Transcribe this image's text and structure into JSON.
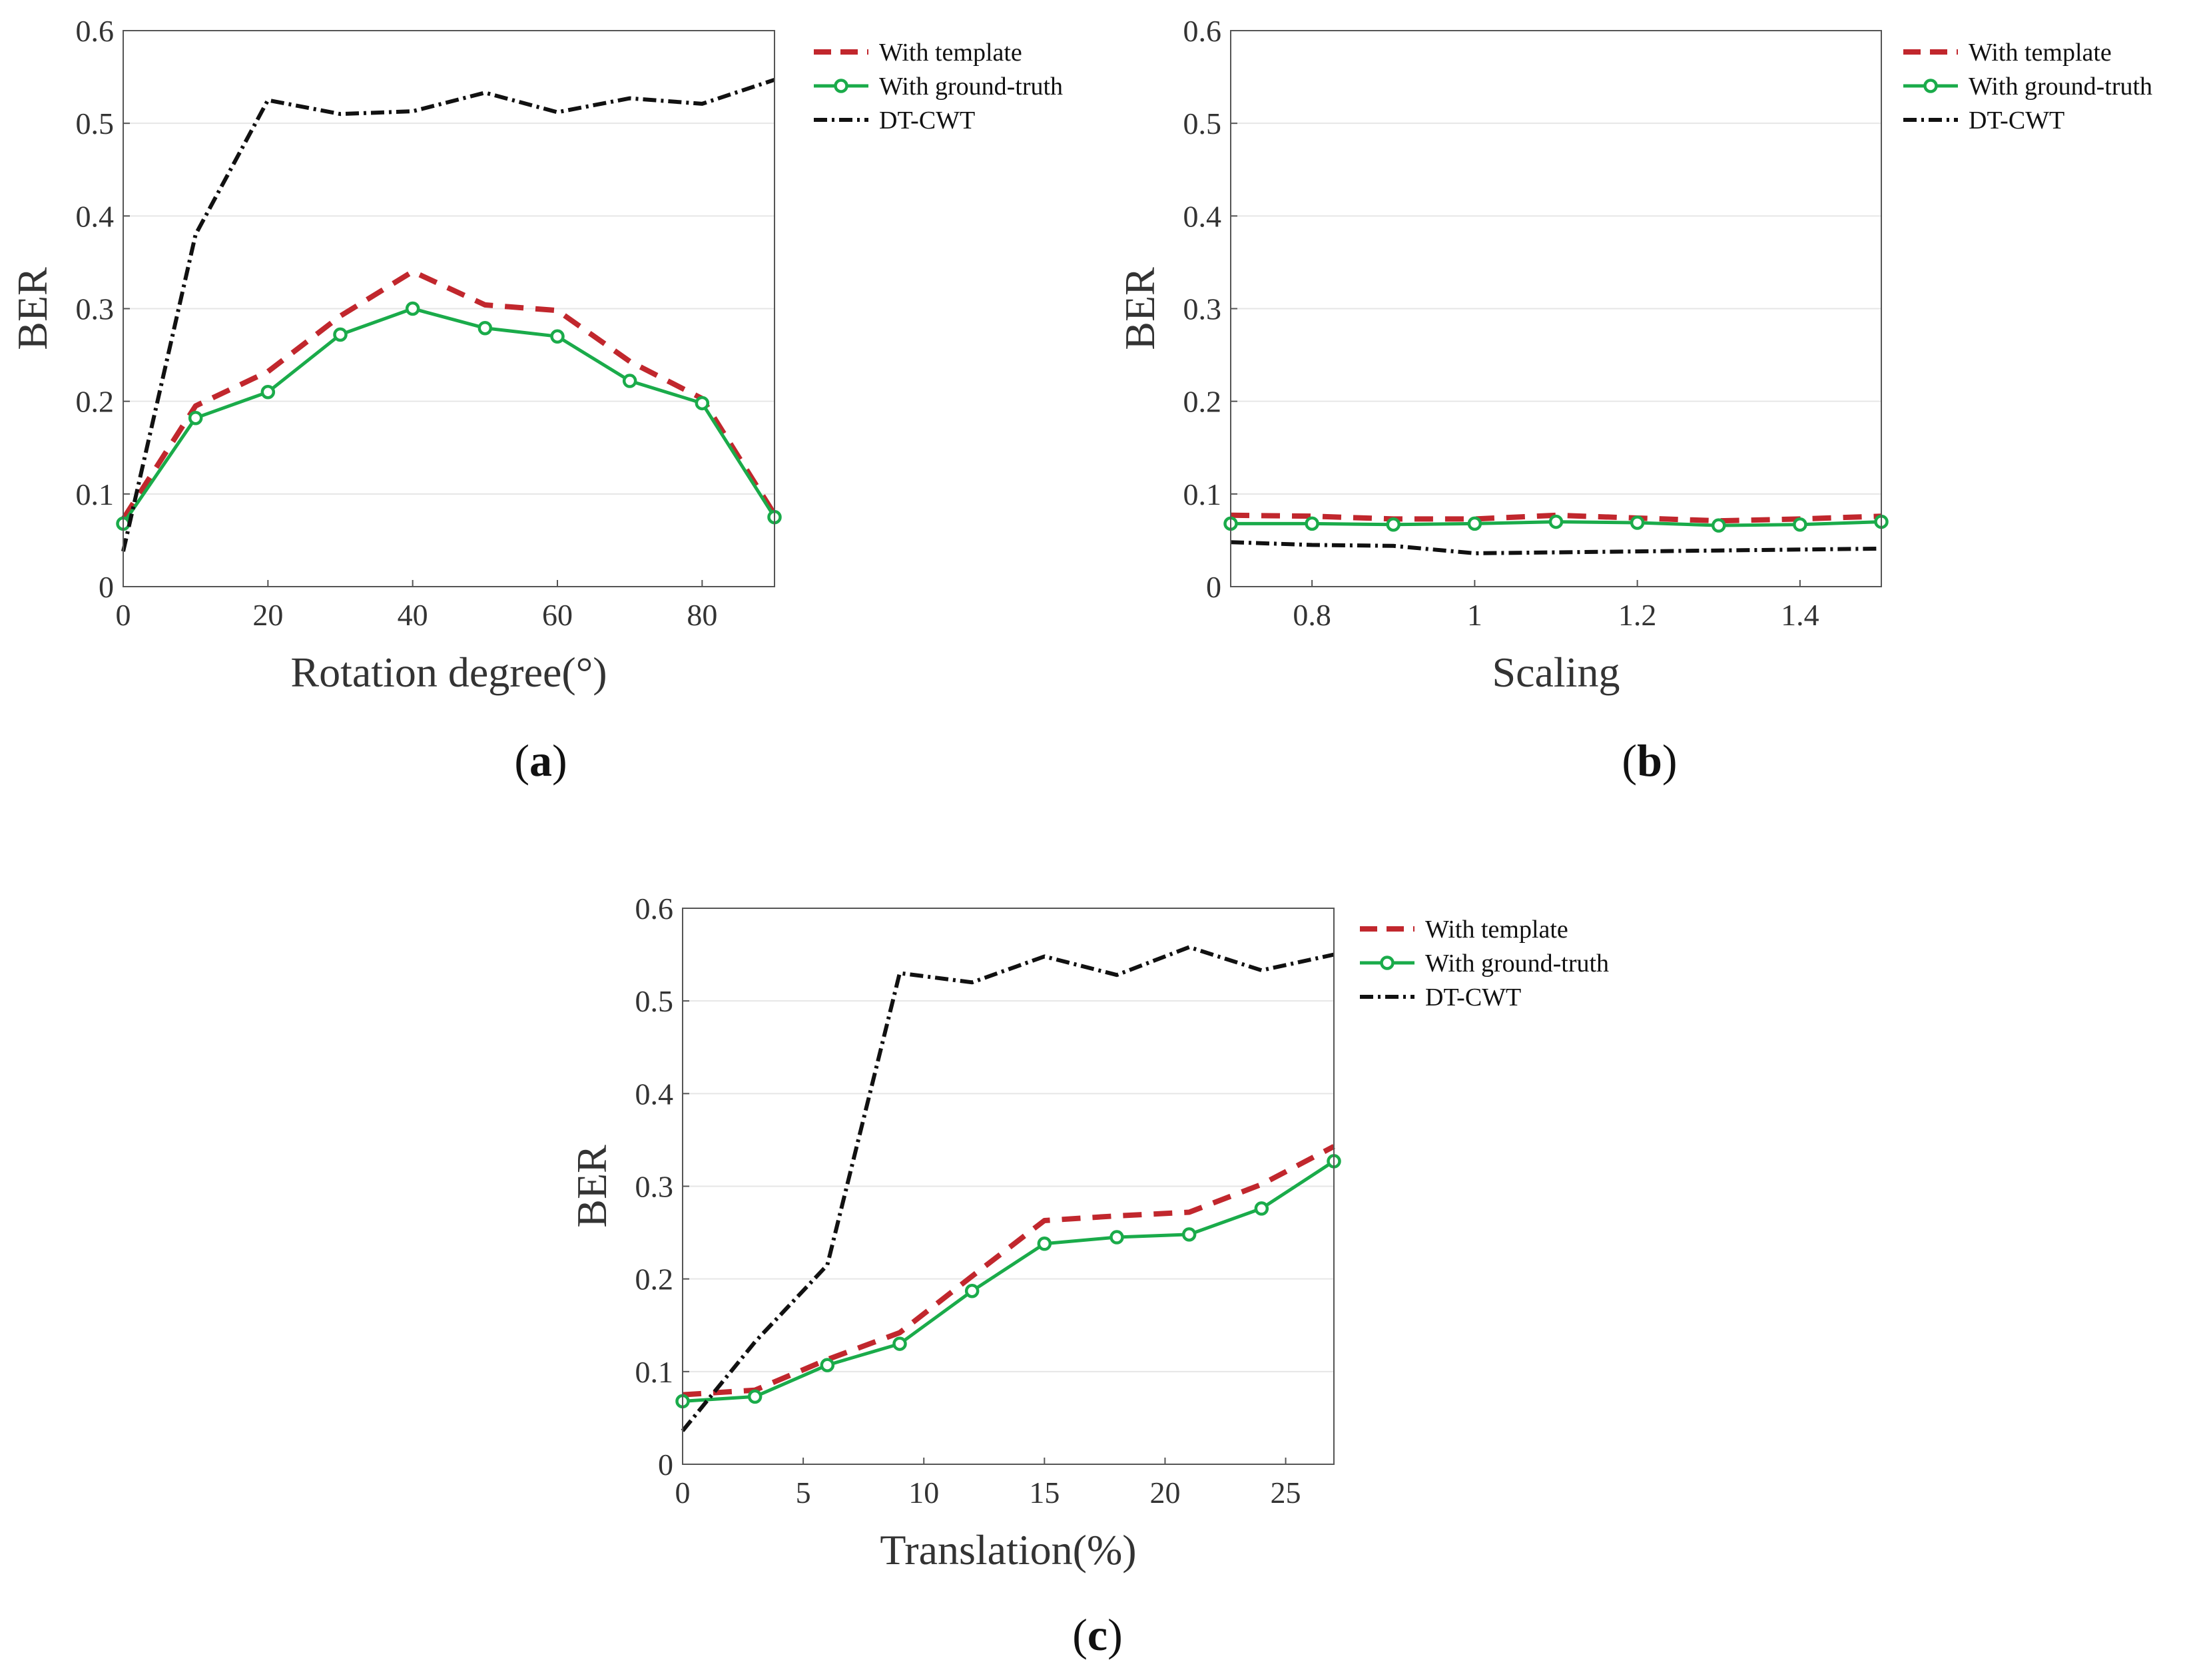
{
  "chart_data": [
    {
      "type": "line",
      "panel_label": "(a)",
      "panel_letter": "a",
      "xlabel": "Rotation degree(°)",
      "ylabel": "BER",
      "xlim": [
        0,
        90
      ],
      "ylim": [
        0,
        0.6
      ],
      "xticks": [
        0,
        20,
        40,
        60,
        80
      ],
      "xtick_labels": [
        "0",
        "20",
        "40",
        "60",
        "80"
      ],
      "yticks": [
        0,
        0.1,
        0.2,
        0.3,
        0.4,
        0.5,
        0.6
      ],
      "ytick_labels": [
        "0",
        "0.1",
        "0.2",
        "0.3",
        "0.4",
        "0.5",
        "0.6"
      ],
      "grid": "horizontal",
      "legend_position": "outside-right",
      "series": [
        {
          "name": "With template",
          "style": "dashed",
          "color": "#c1272d",
          "marker": "none",
          "x": [
            0,
            10,
            20,
            30,
            40,
            50,
            60,
            70,
            80,
            90
          ],
          "values": [
            0.073,
            0.195,
            0.232,
            0.292,
            0.34,
            0.304,
            0.298,
            0.243,
            0.203,
            0.078
          ]
        },
        {
          "name": "With ground-truth",
          "style": "solid",
          "color": "#1aab4a",
          "marker": "circle",
          "x": [
            0,
            10,
            20,
            30,
            40,
            50,
            60,
            70,
            80,
            90
          ],
          "values": [
            0.068,
            0.182,
            0.21,
            0.272,
            0.3,
            0.279,
            0.27,
            0.222,
            0.198,
            0.075
          ]
        },
        {
          "name": "DT-CWT",
          "style": "dashdot",
          "color": "#111111",
          "marker": "none",
          "x": [
            0,
            10,
            20,
            30,
            40,
            50,
            60,
            70,
            80,
            90
          ],
          "values": [
            0.038,
            0.38,
            0.525,
            0.51,
            0.513,
            0.533,
            0.512,
            0.527,
            0.521,
            0.547
          ]
        }
      ]
    },
    {
      "type": "line",
      "panel_label": "(b)",
      "panel_letter": "b",
      "xlabel": "Scaling",
      "ylabel": "BER",
      "xlim": [
        0.7,
        1.5
      ],
      "ylim": [
        0,
        0.6
      ],
      "xticks": [
        0.8,
        1.0,
        1.2,
        1.4
      ],
      "xtick_labels": [
        "0.8",
        "1",
        "1.2",
        "1.4"
      ],
      "yticks": [
        0,
        0.1,
        0.2,
        0.3,
        0.4,
        0.5,
        0.6
      ],
      "ytick_labels": [
        "0",
        "0.1",
        "0.2",
        "0.3",
        "0.4",
        "0.5",
        "0.6"
      ],
      "grid": "horizontal",
      "legend_position": "outside-right",
      "series": [
        {
          "name": "With template",
          "style": "dashed",
          "color": "#c1272d",
          "marker": "none",
          "x": [
            0.7,
            0.8,
            0.9,
            1.0,
            1.1,
            1.2,
            1.3,
            1.4,
            1.5
          ],
          "values": [
            0.077,
            0.076,
            0.073,
            0.073,
            0.077,
            0.074,
            0.071,
            0.073,
            0.076
          ]
        },
        {
          "name": "With ground-truth",
          "style": "solid",
          "color": "#1aab4a",
          "marker": "circle",
          "x": [
            0.7,
            0.8,
            0.9,
            1.0,
            1.1,
            1.2,
            1.3,
            1.4,
            1.5
          ],
          "values": [
            0.068,
            0.068,
            0.067,
            0.068,
            0.07,
            0.069,
            0.066,
            0.067,
            0.07
          ]
        },
        {
          "name": "DT-CWT",
          "style": "dashdot",
          "color": "#111111",
          "marker": "none",
          "x": [
            0.7,
            0.8,
            0.9,
            1.0,
            1.1,
            1.2,
            1.3,
            1.4,
            1.5
          ],
          "values": [
            0.048,
            0.045,
            0.044,
            0.036,
            0.037,
            0.038,
            0.039,
            0.04,
            0.041
          ]
        }
      ]
    },
    {
      "type": "line",
      "panel_label": "(c)",
      "panel_letter": "c",
      "xlabel": "Translation(%)",
      "ylabel": "BER",
      "xlim": [
        0,
        27
      ],
      "ylim": [
        0,
        0.6
      ],
      "xticks": [
        0,
        5,
        10,
        15,
        20,
        25
      ],
      "xtick_labels": [
        "0",
        "5",
        "10",
        "15",
        "20",
        "25"
      ],
      "yticks": [
        0,
        0.1,
        0.2,
        0.3,
        0.4,
        0.5,
        0.6
      ],
      "ytick_labels": [
        "0",
        "0.1",
        "0.2",
        "0.3",
        "0.4",
        "0.5",
        "0.6"
      ],
      "grid": "horizontal",
      "legend_position": "outside-right",
      "series": [
        {
          "name": "With template",
          "style": "dashed",
          "color": "#c1272d",
          "marker": "none",
          "x": [
            0,
            3,
            6,
            9,
            12,
            15,
            18,
            21,
            24,
            27
          ],
          "values": [
            0.075,
            0.08,
            0.113,
            0.142,
            0.203,
            0.263,
            0.268,
            0.272,
            0.302,
            0.343
          ]
        },
        {
          "name": "With ground-truth",
          "style": "solid",
          "color": "#1aab4a",
          "marker": "circle",
          "x": [
            0,
            3,
            6,
            9,
            12,
            15,
            18,
            21,
            24,
            27
          ],
          "values": [
            0.068,
            0.073,
            0.107,
            0.13,
            0.187,
            0.238,
            0.245,
            0.248,
            0.276,
            0.327
          ]
        },
        {
          "name": "DT-CWT",
          "style": "dashdot",
          "color": "#111111",
          "marker": "none",
          "x": [
            0,
            3,
            6,
            9,
            12,
            15,
            18,
            21,
            24,
            27
          ],
          "values": [
            0.036,
            0.132,
            0.215,
            0.53,
            0.52,
            0.548,
            0.528,
            0.558,
            0.533,
            0.55
          ]
        }
      ]
    }
  ]
}
